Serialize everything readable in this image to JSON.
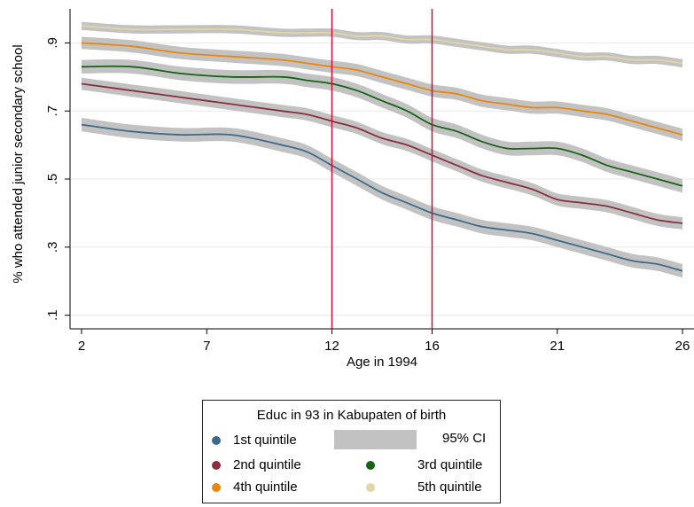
{
  "chart_data": {
    "type": "line",
    "xlabel": "Age in 1994",
    "ylabel": "% who attended junior secondary school",
    "xlim": [
      2,
      26
    ],
    "ylim": [
      0.06,
      1.0
    ],
    "x_ticks": [
      "2",
      "7",
      "12",
      "16",
      "21",
      "26"
    ],
    "y_ticks": [
      ".1",
      ".3",
      ".5",
      ".7",
      ".9"
    ],
    "vertical_lines": [
      12,
      16
    ],
    "vertical_line_color": "#c0143c",
    "grid": "horizontal",
    "confidence_band": {
      "label": "95% CI",
      "color": "#c2c2c2"
    },
    "legend": {
      "title": "Educ in 93 in Kabupaten of birth",
      "position": "bottom"
    },
    "x": [
      2,
      4,
      6,
      8,
      10,
      11,
      12,
      13,
      14,
      15,
      16,
      17,
      18,
      19,
      20,
      21,
      22,
      23,
      24,
      25,
      26
    ],
    "series": [
      {
        "name": "1st quintile",
        "color": "#3d6a8a",
        "values": [
          0.66,
          0.64,
          0.63,
          0.63,
          0.6,
          0.58,
          0.54,
          0.5,
          0.46,
          0.43,
          0.4,
          0.38,
          0.36,
          0.35,
          0.34,
          0.32,
          0.3,
          0.28,
          0.26,
          0.25,
          0.23
        ],
        "ci_halfwidth": 0.02
      },
      {
        "name": "2nd quintile",
        "color": "#8b2e3c",
        "values": [
          0.78,
          0.76,
          0.74,
          0.72,
          0.7,
          0.69,
          0.67,
          0.65,
          0.62,
          0.6,
          0.57,
          0.54,
          0.51,
          0.49,
          0.47,
          0.44,
          0.43,
          0.42,
          0.4,
          0.38,
          0.37
        ],
        "ci_halfwidth": 0.018
      },
      {
        "name": "3rd quintile",
        "color": "#146414",
        "values": [
          0.83,
          0.83,
          0.81,
          0.8,
          0.8,
          0.79,
          0.78,
          0.76,
          0.73,
          0.7,
          0.66,
          0.64,
          0.61,
          0.59,
          0.59,
          0.59,
          0.57,
          0.54,
          0.52,
          0.5,
          0.48
        ],
        "ci_halfwidth": 0.02
      },
      {
        "name": "4th quintile",
        "color": "#e8870e",
        "values": [
          0.9,
          0.89,
          0.87,
          0.86,
          0.85,
          0.84,
          0.83,
          0.82,
          0.8,
          0.78,
          0.76,
          0.75,
          0.73,
          0.72,
          0.71,
          0.71,
          0.7,
          0.69,
          0.67,
          0.65,
          0.63
        ],
        "ci_halfwidth": 0.018
      },
      {
        "name": "5th quintile",
        "color": "#e3d6a4",
        "values": [
          0.95,
          0.94,
          0.94,
          0.94,
          0.93,
          0.93,
          0.93,
          0.92,
          0.92,
          0.91,
          0.91,
          0.9,
          0.89,
          0.88,
          0.88,
          0.87,
          0.86,
          0.86,
          0.85,
          0.85,
          0.84
        ],
        "ci_halfwidth": 0.012
      }
    ]
  }
}
